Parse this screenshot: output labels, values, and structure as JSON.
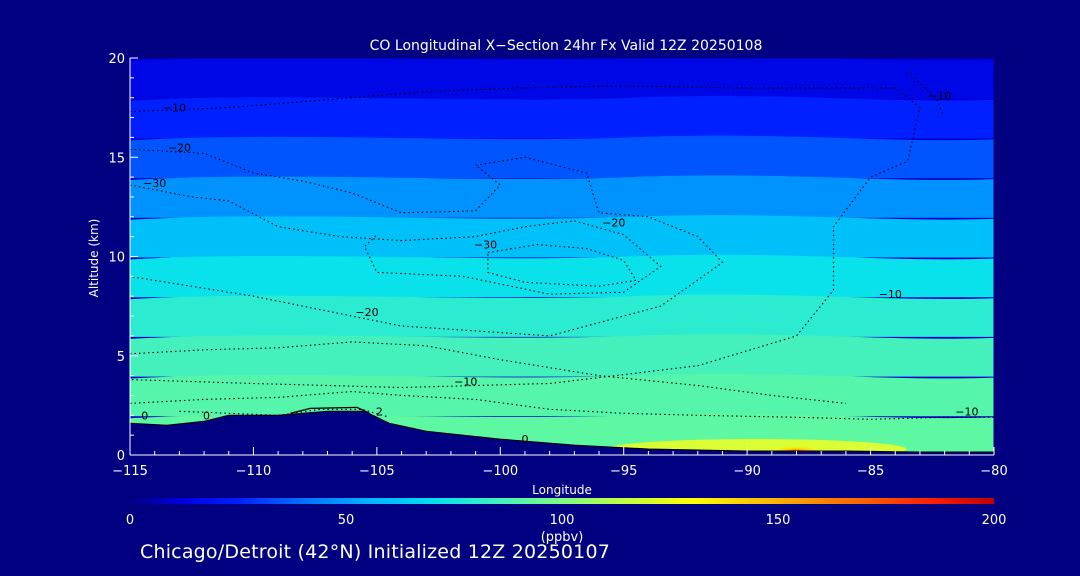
{
  "chart_data": {
    "type": "heatmap",
    "title": "CO Longitudinal X−Section 24hr  Fx Valid 12Z 20250108",
    "xlabel": "Longitude",
    "ylabel": "Altitude (km)",
    "xlim": [
      -115,
      -80
    ],
    "ylim": [
      0,
      20
    ],
    "x_ticks": [
      "−115",
      "−110",
      "−105",
      "−100",
      "−95",
      "−90",
      "−85",
      "−80"
    ],
    "x_tick_values": [
      -115,
      -110,
      -105,
      -100,
      -95,
      -90,
      -85,
      -80
    ],
    "y_ticks": [
      "0",
      "5",
      "10",
      "15",
      "20"
    ],
    "y_tick_values": [
      0,
      5,
      10,
      15,
      20
    ],
    "colorbar": {
      "min": 0,
      "max": 200,
      "ticks": [
        "0",
        "50",
        "100",
        "150",
        "200"
      ],
      "tick_values": [
        0,
        50,
        100,
        150,
        200
      ],
      "units": "(ppbv)"
    },
    "concentration_layers": [
      {
        "altitude_km": 19,
        "co_ppbv": 15
      },
      {
        "altitude_km": 17,
        "co_ppbv": 25
      },
      {
        "altitude_km": 15,
        "co_ppbv": 35
      },
      {
        "altitude_km": 13,
        "co_ppbv": 48
      },
      {
        "altitude_km": 11,
        "co_ppbv": 60
      },
      {
        "altitude_km": 9,
        "co_ppbv": 72
      },
      {
        "altitude_km": 7,
        "co_ppbv": 80
      },
      {
        "altitude_km": 5,
        "co_ppbv": 86
      },
      {
        "altitude_km": 3,
        "co_ppbv": 90
      },
      {
        "altitude_km": 1,
        "co_ppbv": 92
      }
    ],
    "surface_hotspot": {
      "longitude": -88,
      "co_ppbv": 145
    },
    "terrain_km": {
      "lon": [
        -115,
        -113.5,
        -112,
        -111,
        -109,
        -108,
        -107,
        -105.5,
        -104.5,
        -103,
        -100,
        -97,
        -94,
        -90,
        -86,
        -83,
        -80
      ],
      "alt": [
        1.6,
        1.5,
        1.7,
        2.0,
        2.0,
        2.1,
        2.2,
        2.2,
        1.6,
        1.2,
        0.8,
        0.5,
        0.3,
        0.2,
        0.2,
        0.15,
        0.15
      ]
    },
    "contour_labels": [
      {
        "text": "−10",
        "lon": -113.2,
        "alt": 17.3
      },
      {
        "text": "−20",
        "lon": -113.0,
        "alt": 15.3
      },
      {
        "text": "−30",
        "lon": -114.0,
        "alt": 13.5
      },
      {
        "text": "−30",
        "lon": -100.6,
        "alt": 10.4
      },
      {
        "text": "−20",
        "lon": -95.4,
        "alt": 11.5
      },
      {
        "text": "−20",
        "lon": -105.4,
        "alt": 7.0
      },
      {
        "text": "−10",
        "lon": -101.4,
        "alt": 3.5
      },
      {
        "text": "−10",
        "lon": -84.2,
        "alt": 7.9
      },
      {
        "text": "−10",
        "lon": -81.1,
        "alt": 2.0
      },
      {
        "text": "−10",
        "lon": -82.2,
        "alt": 17.9
      },
      {
        "text": "0",
        "lon": -114.4,
        "alt": 1.8
      },
      {
        "text": "0",
        "lon": -111.9,
        "alt": 1.8
      },
      {
        "text": "0",
        "lon": -99.0,
        "alt": 0.6
      },
      {
        "text": "2",
        "lon": -104.9,
        "alt": 2.0
      }
    ]
  },
  "footer": "Chicago/Detroit (42°N) Initialized 12Z 20250107",
  "colors": {
    "background": "#000080",
    "text": "#ffffff",
    "contour": "#000000",
    "terrain": "#000080"
  }
}
